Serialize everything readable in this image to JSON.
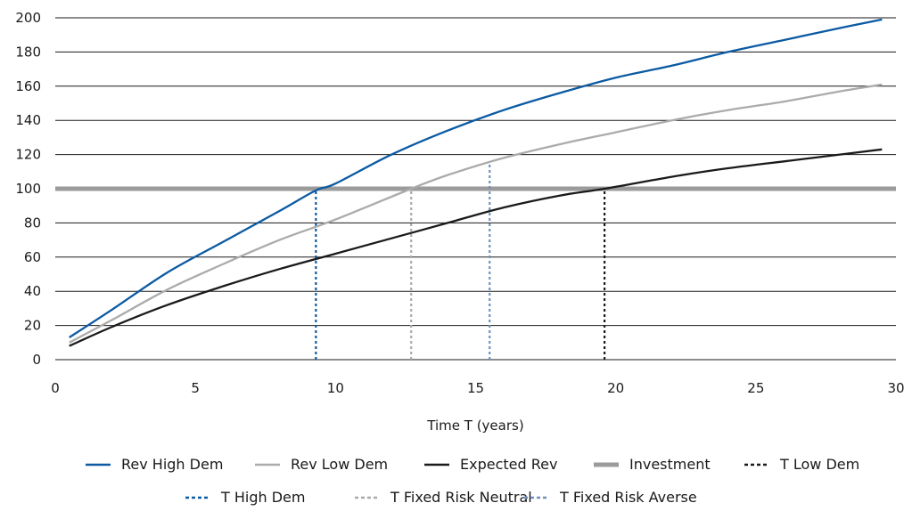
{
  "chart_data": {
    "type": "line",
    "xlabel": "Time T (years)",
    "ylabel": "",
    "xlim": [
      0,
      30
    ],
    "ylim": [
      0,
      200
    ],
    "x_ticks": [
      0,
      5,
      10,
      15,
      20,
      25,
      30
    ],
    "y_ticks": [
      0,
      20,
      40,
      60,
      80,
      100,
      120,
      140,
      160,
      180,
      200
    ],
    "grid": "horizontal",
    "legend_position": "bottom",
    "series": [
      {
        "name": "Rev High Dem",
        "kind": "curve",
        "color": "#0b5aa3",
        "style": "solid",
        "x": [
          0.5,
          2,
          4,
          6,
          8,
          9.3,
          10,
          12,
          14,
          16,
          18,
          20,
          22,
          24,
          26,
          28,
          29.5
        ],
        "y": [
          13,
          29,
          51,
          69,
          87,
          99,
          103,
          120,
          134,
          146,
          156,
          165,
          172,
          180,
          187,
          194,
          199
        ]
      },
      {
        "name": "Rev Low Dem",
        "kind": "curve",
        "color": "#ababab",
        "style": "solid",
        "x": [
          0.5,
          2,
          4,
          6,
          8,
          10,
          12.7,
          14,
          16,
          18,
          20,
          22,
          24,
          26,
          28,
          29.5
        ],
        "y": [
          10,
          23,
          41,
          56,
          70,
          82,
          100,
          108,
          118,
          126,
          133,
          140,
          146,
          151,
          157,
          161
        ]
      },
      {
        "name": "Expected Rev",
        "kind": "curve",
        "color": "#1a1a1a",
        "style": "solid",
        "x": [
          0.5,
          2,
          4,
          6,
          8,
          10,
          12,
          14,
          16,
          18,
          19.6,
          22,
          24,
          26,
          28,
          29.5
        ],
        "y": [
          8,
          19,
          32,
          43,
          53,
          62,
          71,
          80,
          89,
          96,
          100,
          107,
          112,
          116,
          120,
          123
        ]
      },
      {
        "name": "Investment",
        "kind": "hline",
        "color": "#9b9b9b",
        "style": "thick",
        "y": 100
      },
      {
        "name": "T Low Dem",
        "kind": "vline",
        "color": "#1a1a1a",
        "style": "dotted",
        "x": 19.6,
        "y": [
          0,
          100
        ]
      },
      {
        "name": "T High Dem",
        "kind": "vline",
        "color": "#0b5aa3",
        "style": "dotted",
        "x": 9.3,
        "y": [
          0,
          99
        ]
      },
      {
        "name": "T Fixed Risk Neutral",
        "kind": "vline",
        "color": "#a9a9a9",
        "style": "dotted",
        "x": 12.7,
        "y": [
          0,
          100
        ]
      },
      {
        "name": "T Fixed Risk Averse",
        "kind": "vline",
        "color": "#6f8fc2",
        "style": "dotted",
        "x": 15.5,
        "y": [
          0,
          115
        ]
      }
    ]
  }
}
